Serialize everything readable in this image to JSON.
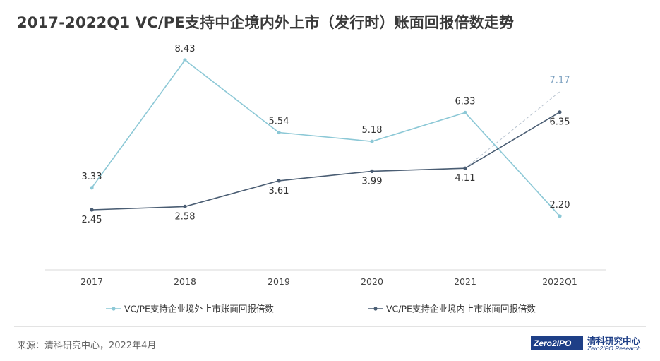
{
  "title": "2017-2022Q1 VC/PE支持中企境内外上市（发行时）账面回报倍数走势",
  "source": "来源：清科研究中心，2022年4月",
  "logo": {
    "box_text": "Zero2IPO",
    "cn": "清科研究中心",
    "en": "Zero2IPO Research"
  },
  "colors": {
    "overseas": "#8cc8d6",
    "domestic": "#4a5d73",
    "projection": "#b9c4d0",
    "projection_label": "#7a9fbf"
  },
  "chart_data": {
    "type": "line",
    "categories": [
      "2017",
      "2018",
      "2019",
      "2020",
      "2021",
      "2022Q1"
    ],
    "series": [
      {
        "name": "VC/PE支持企业境外上市账面回报倍数",
        "values": [
          3.33,
          8.43,
          5.54,
          5.18,
          6.33,
          2.2
        ],
        "labels": [
          "3.33",
          "8.43",
          "5.54",
          "5.18",
          "6.33",
          "2.20"
        ]
      },
      {
        "name": "VC/PE支持企业境内上市账面回报倍数",
        "values": [
          2.45,
          2.58,
          3.61,
          3.99,
          4.11,
          6.35
        ],
        "labels": [
          "2.45",
          "2.58",
          "3.61",
          "3.99",
          "4.11",
          "6.35"
        ]
      }
    ],
    "projection": {
      "from_index": 4,
      "value": 7.17,
      "label": "7.17"
    },
    "legend_position": "bottom",
    "grid": false
  }
}
